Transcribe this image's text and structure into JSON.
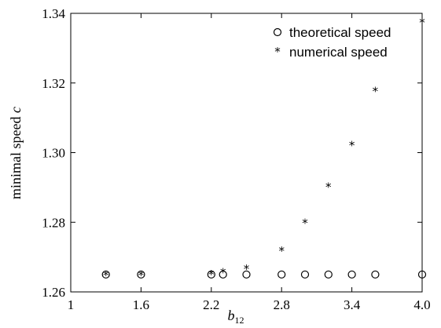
{
  "chart_data": {
    "type": "scatter",
    "xlabel_base": "b",
    "xlabel_sub": "12",
    "ylabel_text": "minimal speed ",
    "ylabel_var": "c",
    "xlim": [
      1.0,
      4.0
    ],
    "ylim": [
      1.26,
      1.34
    ],
    "x_ticks": [
      1.0,
      1.6,
      2.2,
      2.8,
      3.4,
      4.0
    ],
    "x_tick_labels": [
      "1",
      "1.6",
      "2.2",
      "2.8",
      "3.4",
      "4.0"
    ],
    "y_ticks": [
      1.26,
      1.28,
      1.3,
      1.32,
      1.34
    ],
    "y_tick_labels": [
      "1.26",
      "1.28",
      "1.30",
      "1.32",
      "1.34"
    ],
    "grid": false,
    "legend_position": "top-right",
    "series": [
      {
        "name": "theoretical speed",
        "marker": "circle",
        "x": [
          1.3,
          1.6,
          2.2,
          2.3,
          2.5,
          2.8,
          3.0,
          3.2,
          3.4,
          3.6,
          4.0
        ],
        "y": [
          1.265,
          1.265,
          1.265,
          1.265,
          1.265,
          1.265,
          1.265,
          1.265,
          1.265,
          1.265,
          1.265
        ]
      },
      {
        "name": "numerical speed",
        "marker": "star",
        "x": [
          1.3,
          1.6,
          2.2,
          2.3,
          2.5,
          2.8,
          3.0,
          3.2,
          3.4,
          3.6,
          4.0
        ],
        "y": [
          1.265,
          1.265,
          1.2652,
          1.2658,
          1.2668,
          1.272,
          1.28,
          1.2903,
          1.3023,
          1.3178,
          1.3375
        ]
      }
    ]
  }
}
